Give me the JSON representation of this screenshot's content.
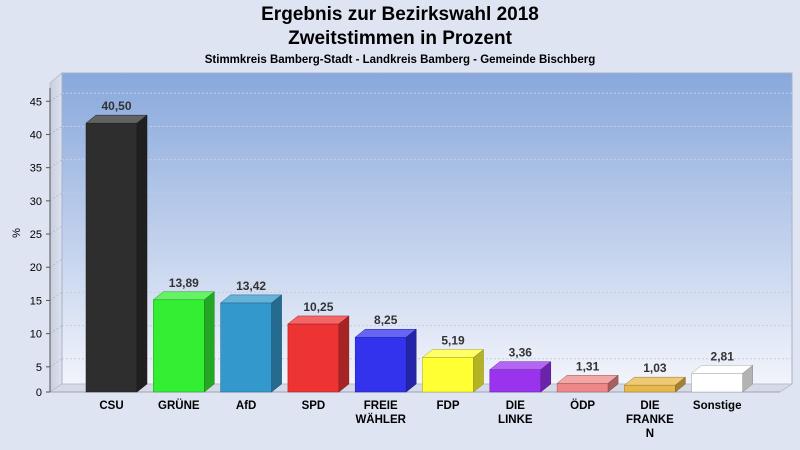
{
  "chart_data": {
    "type": "bar",
    "title": "Ergebnis zur Bezirkswahl 2018",
    "subtitle": "Zweitstimmen in Prozent",
    "caption": "Stimmkreis Bamberg-Stadt - Landkreis Bamberg - Gemeinde Bischberg",
    "ylabel": "%",
    "ylim": [
      0,
      47
    ],
    "yticks": [
      0,
      5,
      10,
      15,
      20,
      25,
      30,
      35,
      40,
      45
    ],
    "grid": true,
    "categories": [
      [
        "CSU"
      ],
      [
        "GRÜNE"
      ],
      [
        "AfD"
      ],
      [
        "SPD"
      ],
      [
        "FREIE",
        "WÄHLER"
      ],
      [
        "FDP"
      ],
      [
        "DIE",
        "LINKE"
      ],
      [
        "ÖDP"
      ],
      [
        "DIE",
        "FRANKE",
        "N"
      ],
      [
        "Sonstige"
      ]
    ],
    "values": [
      40.5,
      13.89,
      13.42,
      10.25,
      8.25,
      5.19,
      3.36,
      1.31,
      1.03,
      2.81
    ],
    "value_labels": [
      "40,50",
      "13,89",
      "13,42",
      "10,25",
      "8,25",
      "5,19",
      "3,36",
      "1,31",
      "1,03",
      "2,81"
    ],
    "colors": [
      "#2e2e2e",
      "#33ee33",
      "#3399cc",
      "#ee3333",
      "#3333ee",
      "#ffff33",
      "#9933ee",
      "#ee8888",
      "#e8b84a",
      "#ffffff"
    ]
  }
}
